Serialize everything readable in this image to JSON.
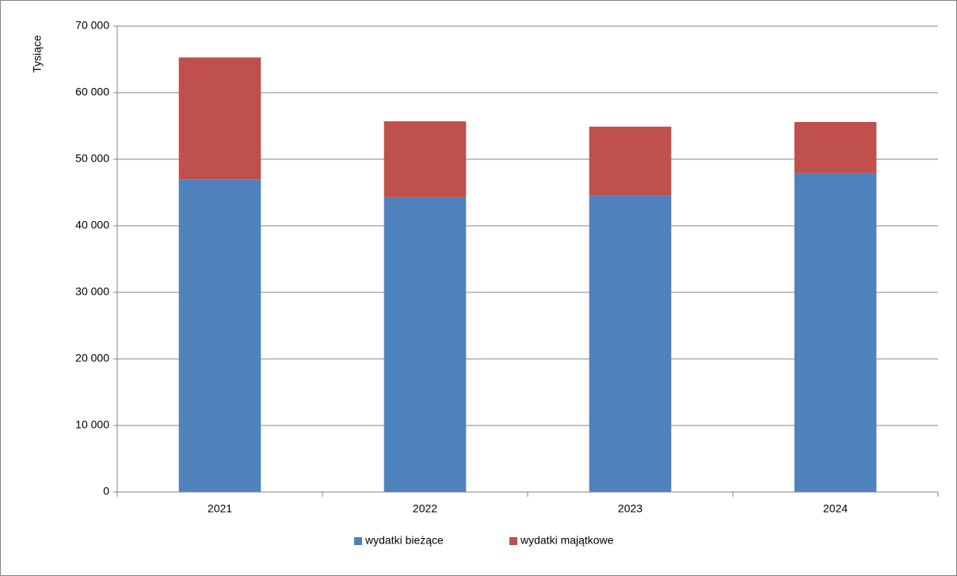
{
  "chart_data": {
    "type": "stacked_bar",
    "y_axis_label": "Tysiące",
    "categories": [
      "2021",
      "2022",
      "2023",
      "2024"
    ],
    "series": [
      {
        "name": "wydatki bieżące",
        "color": "#4f81bd",
        "values": [
          47000,
          44300,
          44600,
          47900
        ]
      },
      {
        "name": "wydatki majątkowe",
        "color": "#c0504d",
        "values": [
          18300,
          11400,
          10300,
          7700
        ]
      }
    ],
    "ylim": [
      0,
      70000
    ],
    "yticks": [
      {
        "value": 0,
        "label": "0"
      },
      {
        "value": 10000,
        "label": "10 000"
      },
      {
        "value": 20000,
        "label": "20 000"
      },
      {
        "value": 30000,
        "label": "30 000"
      },
      {
        "value": 40000,
        "label": "40 000"
      },
      {
        "value": 50000,
        "label": "50 000"
      },
      {
        "value": 60000,
        "label": "60 000"
      },
      {
        "value": 70000,
        "label": "70 000"
      }
    ],
    "grid": true,
    "legend": "bottom"
  }
}
